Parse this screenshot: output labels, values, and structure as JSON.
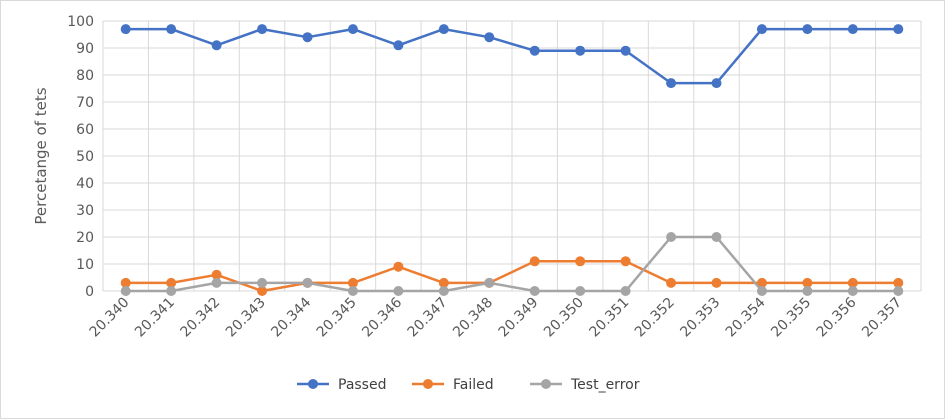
{
  "chart_data": {
    "type": "line",
    "title": "",
    "xlabel": "",
    "ylabel": "Percetange of tets",
    "ylim": [
      0,
      100
    ],
    "y_ticks": [
      "0",
      "10",
      "20",
      "30",
      "40",
      "50",
      "60",
      "70",
      "80",
      "90",
      "100"
    ],
    "categories": [
      "20.340",
      "20.341",
      "20.342",
      "20.343",
      "20.344",
      "20.345",
      "20.346",
      "20.347",
      "20.348",
      "20.349",
      "20.350",
      "20.351",
      "20.352",
      "20.353",
      "20.354",
      "20.355",
      "20.356",
      "20.357"
    ],
    "grid": "vertical and horizontal",
    "legend_position": "bottom",
    "series": [
      {
        "name": "Passed",
        "color": "#4472C4",
        "values": [
          97,
          97,
          91,
          97,
          94,
          97,
          91,
          97,
          94,
          89,
          89,
          89,
          77,
          77,
          97,
          97,
          97,
          97
        ]
      },
      {
        "name": "Failed",
        "color": "#ED7D31",
        "values": [
          3,
          3,
          6,
          0,
          3,
          3,
          9,
          3,
          3,
          11,
          11,
          11,
          3,
          3,
          3,
          3,
          3,
          3
        ]
      },
      {
        "name": "Test_error",
        "color": "#A5A5A5",
        "values": [
          0,
          0,
          3,
          3,
          3,
          0,
          0,
          0,
          3,
          0,
          0,
          0,
          20,
          20,
          0,
          0,
          0,
          0
        ]
      }
    ]
  }
}
